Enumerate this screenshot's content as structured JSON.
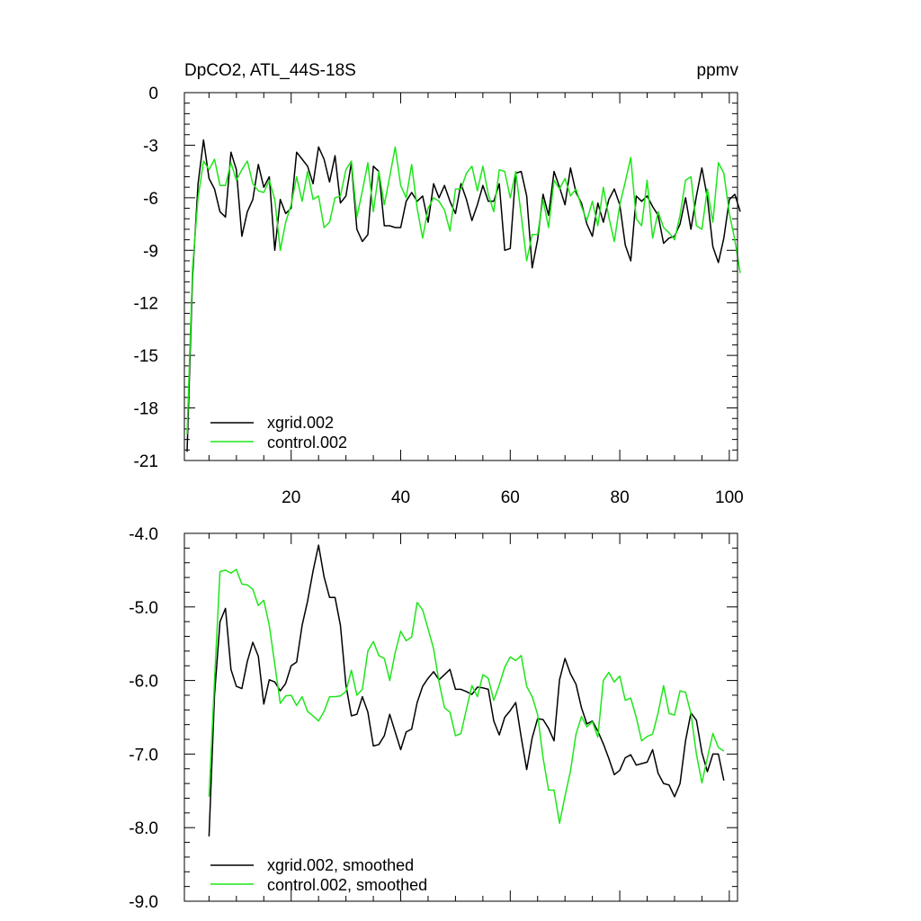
{
  "chart_data": [
    {
      "type": "line",
      "title": "DpCO2, ATL_44S-18S",
      "units": "ppmv",
      "xlabel": "",
      "ylabel": "",
      "xlim": [
        0.5,
        101.5
      ],
      "ylim": [
        -21,
        0
      ],
      "x_ticks": [
        20,
        40,
        60,
        80,
        100
      ],
      "y_ticks": [
        0,
        -3,
        -6,
        -9,
        -12,
        -15,
        -18,
        -21
      ],
      "y_tick_labels": [
        "0",
        "-3",
        "-6",
        "-9",
        "-12",
        "-15",
        "-18",
        "-21"
      ],
      "legend_position": "bottom-left",
      "grid": false,
      "series": [
        {
          "name": "xgrid.002",
          "color": "#000000",
          "x_start": 1,
          "values": [
            -20.5,
            -10.5,
            -5.2,
            -2.7,
            -4.9,
            -5.5,
            -6.8,
            -7.1,
            -3.4,
            -4.4,
            -8.2,
            -6.8,
            -6.1,
            -4.1,
            -5.4,
            -4.8,
            -9.0,
            -6.1,
            -6.9,
            -6.6,
            -3.4,
            -3.8,
            -4.2,
            -5.2,
            -3.1,
            -3.8,
            -5.1,
            -3.6,
            -6.3,
            -5.9,
            -4.0,
            -7.8,
            -8.5,
            -8.1,
            -4.2,
            -4.5,
            -7.6,
            -7.6,
            -7.7,
            -7.7,
            -6.2,
            -5.7,
            -6.2,
            -5.9,
            -7.4,
            -5.2,
            -6.0,
            -5.3,
            -6.2,
            -6.9,
            -5.2,
            -6.1,
            -7.3,
            -6.4,
            -5.3,
            -6.2,
            -6.2,
            -5.2,
            -9.0,
            -8.9,
            -4.6,
            -4.5,
            -5.9,
            -10.0,
            -8.4,
            -5.8,
            -7.0,
            -4.5,
            -5.4,
            -6.4,
            -4.3,
            -5.7,
            -6.3,
            -7.5,
            -8.2,
            -6.3,
            -7.4,
            -6.1,
            -5.5,
            -6.4,
            -8.7,
            -9.6,
            -5.9,
            -6.2,
            -5.9,
            -6.5,
            -7.0,
            -8.6,
            -8.3,
            -8.2,
            -7.5,
            -6.0,
            -7.8,
            -5.9,
            -4.3,
            -6.0,
            -8.8,
            -9.7,
            -8.3,
            -6.1,
            -5.8,
            -6.8
          ]
        },
        {
          "name": "control.002",
          "color": "#1ee619",
          "x_start": 1,
          "values": [
            -19.5,
            -10.0,
            -6.0,
            -3.9,
            -4.4,
            -3.8,
            -5.3,
            -5.3,
            -4.0,
            -5.0,
            -4.4,
            -3.9,
            -5.2,
            -5.6,
            -5.7,
            -5.0,
            -6.1,
            -9.0,
            -7.4,
            -6.4,
            -4.8,
            -6.2,
            -4.5,
            -6.1,
            -5.9,
            -7.7,
            -7.4,
            -6.0,
            -5.9,
            -4.4,
            -3.9,
            -7.1,
            -5.6,
            -4.0,
            -6.8,
            -4.5,
            -6.4,
            -4.8,
            -3.1,
            -5.3,
            -6.0,
            -4.1,
            -6.6,
            -8.3,
            -6.6,
            -6.0,
            -6.2,
            -6.7,
            -7.9,
            -5.5,
            -5.5,
            -4.6,
            -4.2,
            -5.6,
            -4.2,
            -5.8,
            -6.8,
            -4.4,
            -4.5,
            -6.0,
            -4.5,
            -7.0,
            -9.6,
            -8.1,
            -8.1,
            -6.1,
            -7.7,
            -5.0,
            -5.5,
            -4.9,
            -5.9,
            -5.5,
            -6.5,
            -7.3,
            -6.2,
            -7.6,
            -5.4,
            -7.1,
            -8.5,
            -6.4,
            -5.1,
            -3.7,
            -7.2,
            -7.6,
            -5.0,
            -8.3,
            -6.8,
            -7.7,
            -8.0,
            -8.4,
            -7.0,
            -5.0,
            -4.8,
            -7.6,
            -7.8,
            -5.5,
            -7.4,
            -4.0,
            -4.6,
            -6.9,
            -8.4,
            -10.3
          ]
        }
      ]
    },
    {
      "type": "line",
      "title": "",
      "xlabel": "",
      "ylabel": "",
      "xlim": [
        0.5,
        101.5
      ],
      "ylim": [
        -9.0,
        -4.0
      ],
      "x_ticks": [
        20,
        40,
        60,
        80,
        100
      ],
      "y_ticks": [
        -4.0,
        -5.0,
        -6.0,
        -7.0,
        -8.0,
        -9.0
      ],
      "y_tick_labels": [
        "-4.0",
        "-5.0",
        "-6.0",
        "-7.0",
        "-8.0",
        "-9.0"
      ],
      "legend_position": "bottom-left",
      "grid": false,
      "series": [
        {
          "name": "xgrid.002, smoothed",
          "color": "#000000",
          "x_start": 5,
          "values": [
            -8.12,
            -6.2,
            -5.2,
            -5.02,
            -5.85,
            -6.08,
            -6.11,
            -5.74,
            -5.48,
            -5.67,
            -6.32,
            -5.99,
            -6.02,
            -6.14,
            -6.04,
            -5.8,
            -5.75,
            -5.25,
            -4.92,
            -4.51,
            -4.16,
            -4.59,
            -4.87,
            -4.87,
            -5.25,
            -6.06,
            -6.48,
            -6.46,
            -6.22,
            -6.43,
            -6.89,
            -6.87,
            -6.75,
            -6.46,
            -6.7,
            -6.94,
            -6.7,
            -6.66,
            -6.3,
            -6.08,
            -5.97,
            -5.88,
            -5.99,
            -5.92,
            -5.85,
            -6.12,
            -6.12,
            -6.15,
            -6.19,
            -6.09,
            -6.1,
            -6.12,
            -6.55,
            -6.74,
            -6.5,
            -6.41,
            -6.3,
            -6.77,
            -7.21,
            -6.78,
            -6.52,
            -6.53,
            -6.65,
            -6.82,
            -5.99,
            -5.7,
            -5.91,
            -6.05,
            -6.37,
            -6.59,
            -6.55,
            -6.69,
            -6.86,
            -7.06,
            -7.28,
            -7.22,
            -7.05,
            -7.01,
            -7.15,
            -7.13,
            -7.11,
            -6.94,
            -7.26,
            -7.4,
            -7.42,
            -7.58,
            -7.4,
            -6.82,
            -6.44,
            -6.54,
            -6.98,
            -7.24,
            -7.0,
            -7.0,
            -7.36
          ]
        },
        {
          "name": "control.002, smoothed",
          "color": "#1ee619",
          "x_start": 5,
          "values": [
            -7.58,
            -6.0,
            -4.52,
            -4.5,
            -4.54,
            -4.49,
            -4.69,
            -4.7,
            -4.76,
            -4.98,
            -4.91,
            -5.25,
            -5.78,
            -6.31,
            -6.21,
            -6.2,
            -6.34,
            -6.22,
            -6.42,
            -6.48,
            -6.55,
            -6.42,
            -6.22,
            -6.22,
            -6.21,
            -6.15,
            -5.86,
            -6.2,
            -6.12,
            -5.6,
            -5.47,
            -5.66,
            -5.7,
            -6.0,
            -5.62,
            -5.33,
            -5.46,
            -5.41,
            -4.94,
            -5.04,
            -5.3,
            -5.57,
            -6.02,
            -6.37,
            -6.43,
            -6.75,
            -6.72,
            -6.39,
            -6.07,
            -6.22,
            -5.92,
            -5.97,
            -6.27,
            -6.06,
            -5.82,
            -5.68,
            -5.73,
            -5.66,
            -6.08,
            -6.22,
            -6.46,
            -7.05,
            -7.49,
            -7.49,
            -7.94,
            -7.57,
            -7.23,
            -6.73,
            -6.49,
            -6.63,
            -6.56,
            -6.77,
            -6.0,
            -5.89,
            -6.02,
            -5.94,
            -6.27,
            -6.24,
            -6.5,
            -6.82,
            -6.76,
            -6.73,
            -6.44,
            -6.07,
            -6.45,
            -6.47,
            -6.14,
            -6.16,
            -6.45,
            -7.0,
            -7.39,
            -7.05,
            -6.72,
            -6.91,
            -6.96
          ]
        }
      ]
    }
  ]
}
